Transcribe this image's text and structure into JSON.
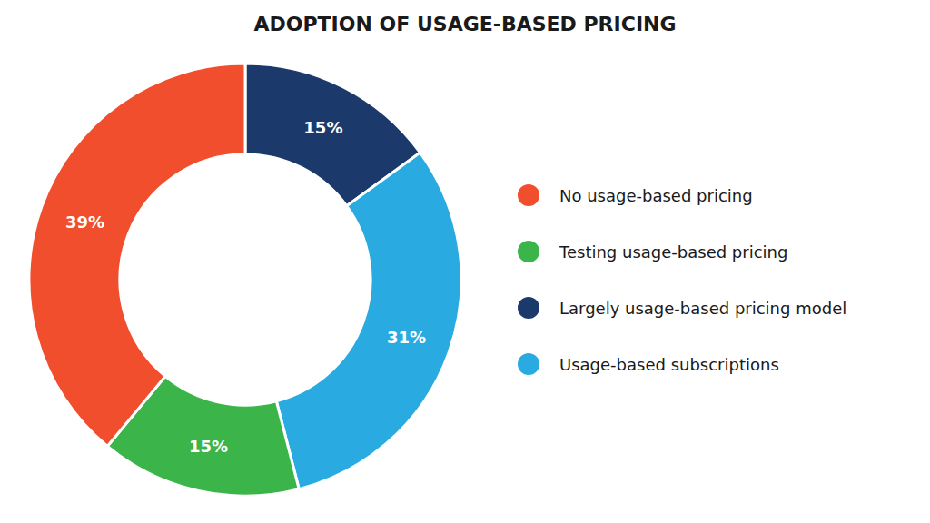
{
  "chart_data": {
    "type": "pie",
    "title": "ADOPTION OF USAGE-BASED PRICING",
    "categories": [
      "Largely usage-based pricing model",
      "Usage-based subscriptions",
      "Testing usage-based pricing",
      "No usage-based pricing"
    ],
    "values": [
      15,
      31,
      15,
      39
    ],
    "value_labels": [
      "15%",
      "31%",
      "15%",
      "39%"
    ],
    "colors": [
      "#1B3A6B",
      "#29ABE2",
      "#3BB54A",
      "#F04E2D"
    ],
    "data_labels": true,
    "legend": "right",
    "legend_order": [
      "No usage-based pricing",
      "Testing usage-based pricing",
      "Largely usage-based pricing model",
      "Usage-based subscriptions"
    ]
  }
}
